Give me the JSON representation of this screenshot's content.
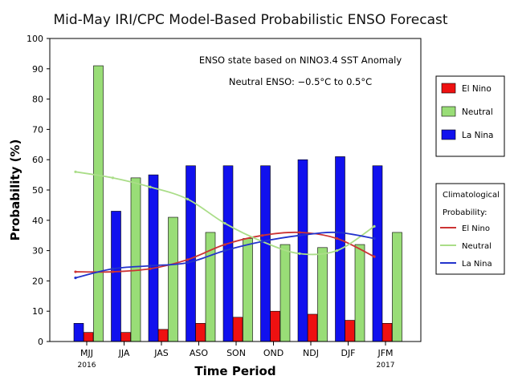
{
  "chart_data": {
    "type": "bar",
    "title": "Mid-May IRI/CPC Model-Based Probabilistic ENSO Forecast",
    "annotation_lines": [
      "ENSO state based on NINO3.4 SST Anomaly",
      "Neutral ENSO: −0.5°C to 0.5°C"
    ],
    "xlabel": "Time Period",
    "ylabel": "Probability (%)",
    "ylim": [
      0,
      100
    ],
    "yticks": [
      "0",
      "10",
      "20",
      "30",
      "40",
      "50",
      "60",
      "70",
      "80",
      "90",
      "100"
    ],
    "categories": [
      "MJJ",
      "JJA",
      "JAS",
      "ASO",
      "SON",
      "OND",
      "NDJ",
      "DJF",
      "JFM"
    ],
    "year_labels": [
      {
        "category_index": 0,
        "text": "2016"
      },
      {
        "category_index": 8,
        "text": "2017"
      }
    ],
    "grid": false,
    "legend_position": "right",
    "series": [
      {
        "name": "El Nino",
        "color": "#ee1111",
        "values": [
          3,
          3,
          4,
          6,
          8,
          10,
          9,
          7,
          6
        ]
      },
      {
        "name": "Neutral",
        "color": "#99dd77",
        "values": [
          91,
          54,
          41,
          36,
          34,
          32,
          31,
          32,
          36
        ]
      },
      {
        "name": "La Nina",
        "color": "#1111ee",
        "values": [
          6,
          43,
          55,
          58,
          58,
          58,
          60,
          61,
          58
        ]
      }
    ],
    "climatology_title": [
      "Climatological",
      "Probability:"
    ],
    "climatology": [
      {
        "name": "El Nino",
        "color": "#cc3333",
        "values": [
          23,
          23,
          24,
          27,
          32,
          35,
          36,
          34,
          28
        ]
      },
      {
        "name": "Neutral",
        "color": "#aadd88",
        "values": [
          56,
          54,
          51,
          47,
          39,
          33,
          29,
          30,
          38
        ]
      },
      {
        "name": "La Nina",
        "color": "#2233cc",
        "values": [
          21,
          24,
          25,
          26,
          30,
          33,
          35,
          36,
          34
        ]
      }
    ]
  }
}
